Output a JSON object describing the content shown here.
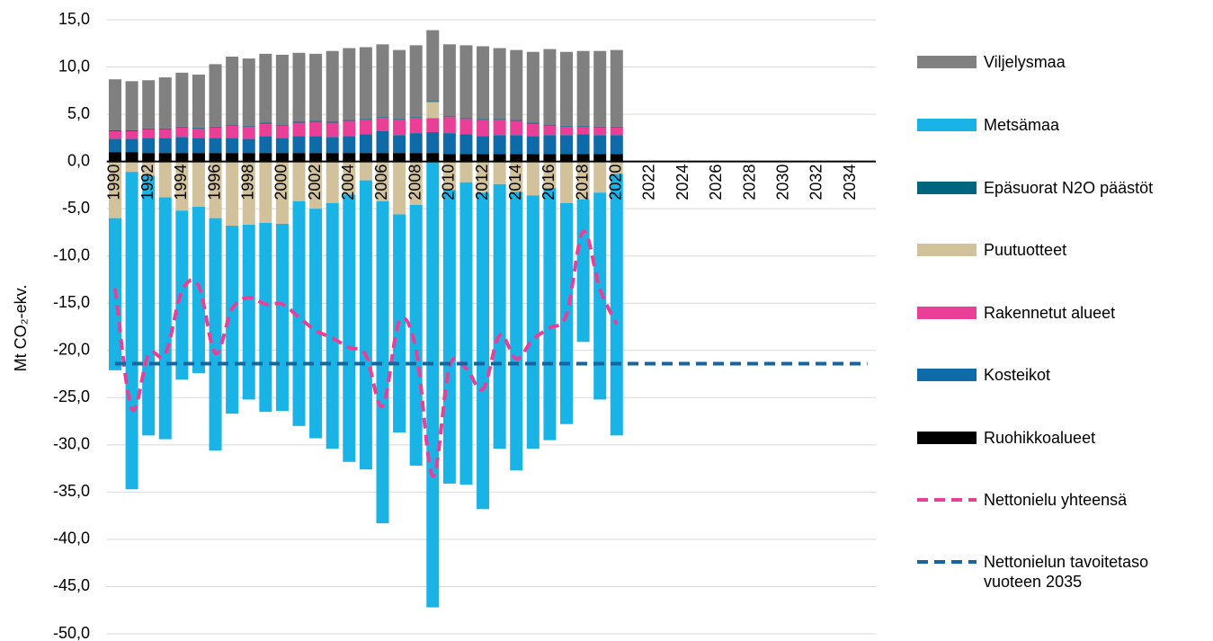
{
  "chart_data": {
    "type": "bar",
    "y_label": "Mt CO₂-ekv.",
    "categories": [
      "1990",
      null,
      "1992",
      null,
      "1994",
      null,
      "1996",
      null,
      "1998",
      null,
      "2000",
      null,
      "2002",
      null,
      "2004",
      null,
      "2006",
      null,
      "2008",
      null,
      "2010",
      null,
      "2012",
      null,
      "2014",
      null,
      "2016",
      null,
      "2018",
      null,
      "2020",
      null,
      "2022",
      null,
      "2024",
      null,
      "2026",
      null,
      "2028",
      null,
      "2030",
      null,
      "2032",
      null,
      "2034",
      null
    ],
    "ylim": [
      -50,
      15
    ],
    "yticks": [
      {
        "value": 15,
        "label": "15,0"
      },
      {
        "value": 10,
        "label": "10,0"
      },
      {
        "value": 5,
        "label": "5,0"
      },
      {
        "value": 0,
        "label": "0,0"
      },
      {
        "value": -5,
        "label": "-5,0"
      },
      {
        "value": -10,
        "label": "-10,0"
      },
      {
        "value": -15,
        "label": "-15,0"
      },
      {
        "value": -20,
        "label": "-20,0"
      },
      {
        "value": -25,
        "label": "-25,0"
      },
      {
        "value": -30,
        "label": "-30,0"
      },
      {
        "value": -35,
        "label": "-35,0"
      },
      {
        "value": -40,
        "label": "-40,0"
      },
      {
        "value": -45,
        "label": "-45,0"
      },
      {
        "value": -50,
        "label": "-50,0"
      }
    ],
    "grid": true,
    "legend": "right",
    "series": [
      {
        "name": "Viljelysmaa",
        "type": "bar",
        "color": "#808080",
        "values": [
          5.4,
          5.2,
          5.1,
          5.4,
          5.7,
          5.6,
          6.6,
          7.2,
          7.1,
          7.3,
          7.4,
          7.3,
          7.1,
          7.5,
          7.6,
          7.6,
          7.7,
          7.3,
          7.6,
          7.5,
          7.6,
          7.7,
          7.7,
          7.5,
          7.4,
          7.5,
          8.0,
          7.8,
          7.9,
          8.0,
          8.1,
          null,
          null,
          null,
          null,
          null,
          null,
          null,
          null,
          null,
          null,
          null,
          null,
          null,
          null,
          null
        ]
      },
      {
        "name": "Metsämaa",
        "type": "bar",
        "color": "#1ab3e6",
        "values": [
          -16.1,
          -33.6,
          -27.5,
          -25.6,
          -17.9,
          -17.6,
          -24.6,
          -19.9,
          -18.5,
          -20.0,
          -19.8,
          -23.8,
          -24.3,
          -26.0,
          -28.3,
          -30.6,
          -34.1,
          -23.1,
          -27.6,
          -47.2,
          -31.1,
          -32.0,
          -33.5,
          -28.0,
          -29.5,
          -26.8,
          -26.7,
          -23.4,
          -15.1,
          -21.9,
          -27.7,
          null,
          null,
          null,
          null,
          null,
          null,
          null,
          null,
          null,
          null,
          null,
          null,
          null,
          null,
          null
        ]
      },
      {
        "name": "Epäsuorat N2O päästöt",
        "type": "bar",
        "color": "#006680",
        "values": [
          0.1,
          0.1,
          0.1,
          0.1,
          0.1,
          0.1,
          0.1,
          0.1,
          0.1,
          0.1,
          0.1,
          0.1,
          0.1,
          0.1,
          0.1,
          0.1,
          0.1,
          0.1,
          0.1,
          0.1,
          0.1,
          0.1,
          0.1,
          0.1,
          0.1,
          0.1,
          0.1,
          0.1,
          0.1,
          0.1,
          0.1,
          null,
          null,
          null,
          null,
          null,
          null,
          null,
          null,
          null,
          null,
          null,
          null,
          null,
          null,
          null
        ]
      },
      {
        "name": "Puutuotteet",
        "type": "bar",
        "color": "#d2c29c",
        "values": [
          -6.0,
          -1.1,
          -1.5,
          -3.8,
          -5.2,
          -4.8,
          -6.0,
          -6.8,
          -6.7,
          -6.5,
          -6.6,
          -4.2,
          -5.0,
          -4.4,
          -3.5,
          -2.0,
          -4.2,
          -5.6,
          -4.6,
          1.7,
          -3.0,
          -2.2,
          -3.3,
          -2.4,
          -3.2,
          -3.6,
          -2.8,
          -4.4,
          -4.0,
          -3.3,
          -1.3,
          null,
          null,
          null,
          null,
          null,
          null,
          null,
          null,
          null,
          null,
          null,
          null,
          null,
          null,
          null
        ]
      },
      {
        "name": "Rakennetut alueet",
        "type": "bar",
        "color": "#ea3f97",
        "values": [
          0.8,
          0.8,
          0.9,
          0.9,
          1.0,
          1.0,
          1.1,
          1.3,
          1.3,
          1.3,
          1.3,
          1.4,
          1.5,
          1.5,
          1.6,
          1.5,
          1.4,
          1.6,
          1.6,
          1.5,
          1.7,
          1.6,
          1.7,
          1.6,
          1.5,
          1.3,
          1.0,
          0.9,
          0.8,
          0.8,
          0.8,
          null,
          null,
          null,
          null,
          null,
          null,
          null,
          null,
          null,
          null,
          null,
          null,
          null,
          null,
          null
        ]
      },
      {
        "name": "Kosteikot",
        "type": "bar",
        "color": "#0f6aa8",
        "values": [
          1.4,
          1.4,
          1.6,
          1.6,
          1.7,
          1.6,
          1.6,
          1.6,
          1.5,
          1.8,
          1.6,
          1.8,
          1.8,
          1.7,
          1.8,
          2.0,
          2.3,
          1.9,
          2.1,
          2.2,
          2.2,
          2.1,
          1.9,
          2.0,
          2.0,
          1.9,
          2.0,
          2.0,
          2.1,
          2.0,
          2.0,
          null,
          null,
          null,
          null,
          null,
          null,
          null,
          null,
          null,
          null,
          null,
          null,
          null,
          null,
          null
        ]
      },
      {
        "name": "Ruohikkoalueet",
        "type": "bar",
        "color": "#000000",
        "values": [
          1.0,
          1.0,
          0.9,
          0.9,
          0.9,
          0.9,
          0.9,
          0.9,
          0.9,
          0.9,
          0.9,
          0.9,
          0.9,
          0.9,
          0.9,
          0.9,
          0.9,
          0.9,
          0.9,
          0.9,
          0.8,
          0.8,
          0.8,
          0.8,
          0.8,
          0.8,
          0.8,
          0.8,
          0.8,
          0.8,
          0.8,
          null,
          null,
          null,
          null,
          null,
          null,
          null,
          null,
          null,
          null,
          null,
          null,
          null,
          null,
          null
        ]
      },
      {
        "name": "Nettonielu yhteensä",
        "type": "line",
        "line_style": "dashed",
        "color": "#ea3f97",
        "values": [
          -13.4,
          -26.2,
          -20.4,
          -20.4,
          -13.7,
          -13.2,
          -20.3,
          -15.6,
          -14.4,
          -15.1,
          -15.1,
          -16.5,
          -17.9,
          -18.7,
          -19.7,
          -20.5,
          -25.9,
          -16.9,
          -19.9,
          -33.3,
          -21.7,
          -21.9,
          -24.1,
          -18.4,
          -20.9,
          -18.8,
          -17.6,
          -16.2,
          -7.4,
          -13.5,
          -17.2,
          null,
          null,
          null,
          null,
          null,
          null,
          null,
          null,
          null,
          null,
          null,
          null,
          null,
          null,
          null
        ]
      },
      {
        "name": "Nettonielun tavoitetaso vuoteen 2035",
        "type": "line",
        "line_style": "dashed",
        "color": "#1565a0",
        "values": [
          -21.4,
          -21.4,
          -21.4,
          -21.4,
          -21.4,
          -21.4,
          -21.4,
          -21.4,
          -21.4,
          -21.4,
          -21.4,
          -21.4,
          -21.4,
          -21.4,
          -21.4,
          -21.4,
          -21.4,
          -21.4,
          -21.4,
          -21.4,
          -21.4,
          -21.4,
          -21.4,
          -21.4,
          -21.4,
          -21.4,
          -21.4,
          -21.4,
          -21.4,
          -21.4,
          -21.4,
          -21.4,
          -21.4,
          -21.4,
          -21.4,
          -21.4,
          -21.4,
          -21.4,
          -21.4,
          -21.4,
          -21.4,
          -21.4,
          -21.4,
          -21.4,
          -21.4,
          -21.4
        ]
      }
    ]
  }
}
